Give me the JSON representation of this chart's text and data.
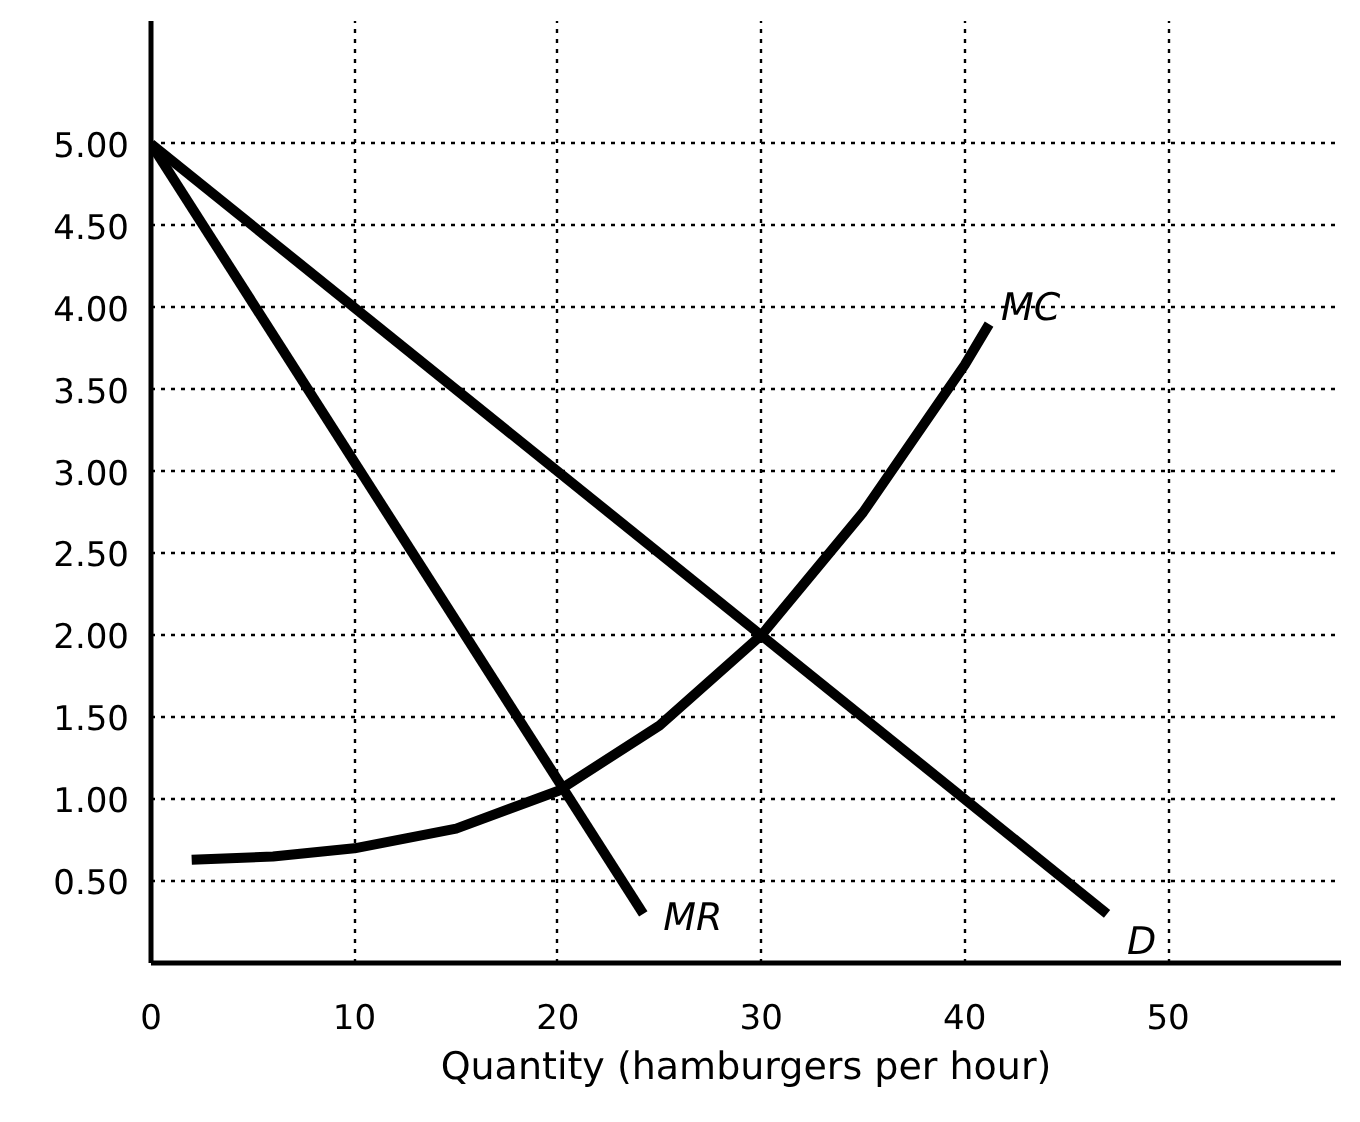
{
  "chart_data": {
    "type": "line",
    "xlabel": "Quantity (hamburgers per hour)",
    "xlim": [
      0,
      58.5
    ],
    "ylim": [
      0,
      5.75
    ],
    "xticks": [
      0,
      10,
      20,
      30,
      40,
      50
    ],
    "yticks": [
      {
        "value": 0.5,
        "label": "0.50"
      },
      {
        "value": 1,
        "label": "1.00"
      },
      {
        "value": 1.5,
        "label": "1.50"
      },
      {
        "value": 2,
        "label": "2.00"
      },
      {
        "value": 2.5,
        "label": "2.50"
      },
      {
        "value": 3,
        "label": "3.00"
      },
      {
        "value": 3.5,
        "label": "3.50"
      },
      {
        "value": 4,
        "label": "4.00"
      },
      {
        "value": 4.5,
        "label": "4.50"
      },
      {
        "value": 5,
        "label": "5.00"
      }
    ],
    "grid": true,
    "line_style": "solid",
    "marker": "none",
    "series": [
      {
        "name": "MC",
        "color": "#000000",
        "x": [
          2,
          6,
          10,
          15,
          20,
          25,
          30,
          35,
          40,
          41.2
        ],
        "values": [
          0.63,
          0.65,
          0.7,
          0.82,
          1.05,
          1.45,
          2.0,
          2.75,
          3.65,
          3.9
        ]
      },
      {
        "name": "MR",
        "color": "#000000",
        "x": [
          0,
          24.2
        ],
        "values": [
          5,
          0.3
        ]
      },
      {
        "name": "D",
        "color": "#000000",
        "x": [
          0,
          47
        ],
        "values": [
          5,
          0.3
        ]
      }
    ]
  }
}
